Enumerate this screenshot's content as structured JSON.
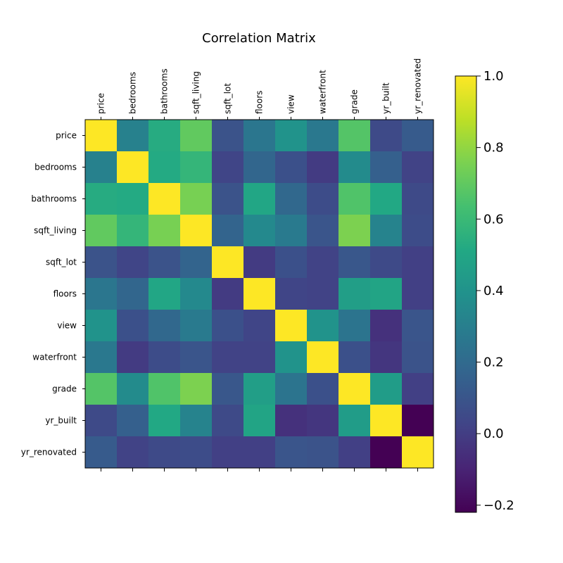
{
  "chart_data": {
    "type": "heatmap",
    "title": "Correlation Matrix",
    "xlabel": "",
    "ylabel": "",
    "labels": [
      "price",
      "bedrooms",
      "bathrooms",
      "sqft_living",
      "sqft_lot",
      "floors",
      "view",
      "waterfront",
      "grade",
      "yr_built",
      "yr_renovated"
    ],
    "matrix": [
      [
        1.0,
        0.31,
        0.53,
        0.7,
        0.09,
        0.26,
        0.4,
        0.27,
        0.67,
        0.05,
        0.13
      ],
      [
        0.31,
        1.0,
        0.52,
        0.58,
        0.03,
        0.18,
        0.08,
        -0.01,
        0.36,
        0.15,
        0.02
      ],
      [
        0.53,
        0.52,
        1.0,
        0.75,
        0.09,
        0.5,
        0.19,
        0.06,
        0.66,
        0.51,
        0.05
      ],
      [
        0.7,
        0.58,
        0.75,
        1.0,
        0.17,
        0.35,
        0.28,
        0.1,
        0.76,
        0.32,
        0.06
      ],
      [
        0.09,
        0.03,
        0.09,
        0.17,
        1.0,
        -0.01,
        0.08,
        0.02,
        0.11,
        0.05,
        0.01
      ],
      [
        0.26,
        0.18,
        0.5,
        0.35,
        -0.01,
        1.0,
        0.03,
        0.02,
        0.46,
        0.49,
        0.01
      ],
      [
        0.4,
        0.08,
        0.19,
        0.28,
        0.08,
        0.03,
        1.0,
        0.4,
        0.25,
        -0.05,
        0.1
      ],
      [
        0.27,
        -0.01,
        0.06,
        0.1,
        0.02,
        0.02,
        0.4,
        1.0,
        0.08,
        -0.03,
        0.09
      ],
      [
        0.67,
        0.36,
        0.66,
        0.76,
        0.11,
        0.46,
        0.25,
        0.08,
        1.0,
        0.45,
        0.01
      ],
      [
        0.05,
        0.15,
        0.51,
        0.32,
        0.05,
        0.49,
        -0.05,
        -0.03,
        0.45,
        1.0,
        -0.22
      ],
      [
        0.13,
        0.02,
        0.05,
        0.06,
        0.01,
        0.01,
        0.1,
        0.09,
        0.01,
        -0.22,
        1.0
      ]
    ],
    "colormap": "viridis",
    "vmin": -0.22,
    "vmax": 1.0,
    "colorbar": {
      "ticks": [
        -0.2,
        0.0,
        0.2,
        0.4,
        0.6,
        0.8,
        1.0
      ],
      "tick_labels": [
        "−0.2",
        "0.0",
        "0.2",
        "0.4",
        "0.6",
        "0.8",
        "1.0"
      ]
    }
  }
}
